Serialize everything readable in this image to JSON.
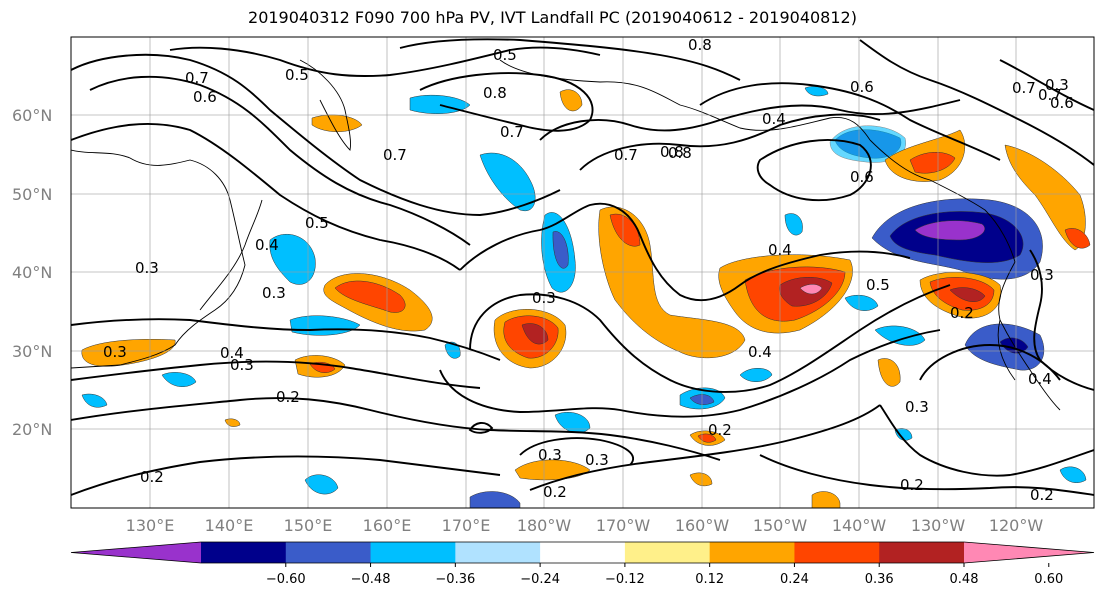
{
  "title": "2019040312 F090 700 hPa PV, IVT Landfall PC (2019040612 - 2019040812)",
  "lat_ticks": [
    "60°N",
    "50°N",
    "40°N",
    "30°N",
    "20°N"
  ],
  "lon_ticks": [
    "130°E",
    "140°E",
    "150°E",
    "160°E",
    "170°E",
    "180°W",
    "170°W",
    "160°W",
    "150°W",
    "140°W",
    "130°W",
    "120°W"
  ],
  "colorbar": {
    "colors": [
      "#9932cc",
      "#00008b",
      "#3a5cc9",
      "#00bfff",
      "#b0e2ff",
      "#ffffff",
      "#fff08a",
      "#ffa500",
      "#ff4500",
      "#b22222",
      "#ff88b4"
    ],
    "labels": [
      "−0.60",
      "−0.48",
      "−0.36",
      "−0.24",
      "−0.12",
      "0.12",
      "0.24",
      "0.36",
      "0.48",
      "0.60"
    ]
  },
  "contour_labels": [
    "0.7",
    "0.6",
    "0.5",
    "0.5",
    "0.8",
    "0.8",
    "0.7",
    "0.8",
    "0.7",
    "0.6",
    "0.4",
    "0.6",
    "0.7",
    "0.8",
    "0.7",
    "0.6",
    "0.7",
    "0.5",
    "0.4",
    "0.3",
    "0.3",
    "0.3",
    "0.4",
    "0.3",
    "0.2",
    "0.3",
    "0.4",
    "0.5",
    "0.4",
    "0.3",
    "0.2",
    "0.3",
    "0.3",
    "0.2",
    "0.2",
    "0.2",
    "0.2",
    "0.3",
    "0.4",
    "0.2",
    "0.3"
  ]
}
